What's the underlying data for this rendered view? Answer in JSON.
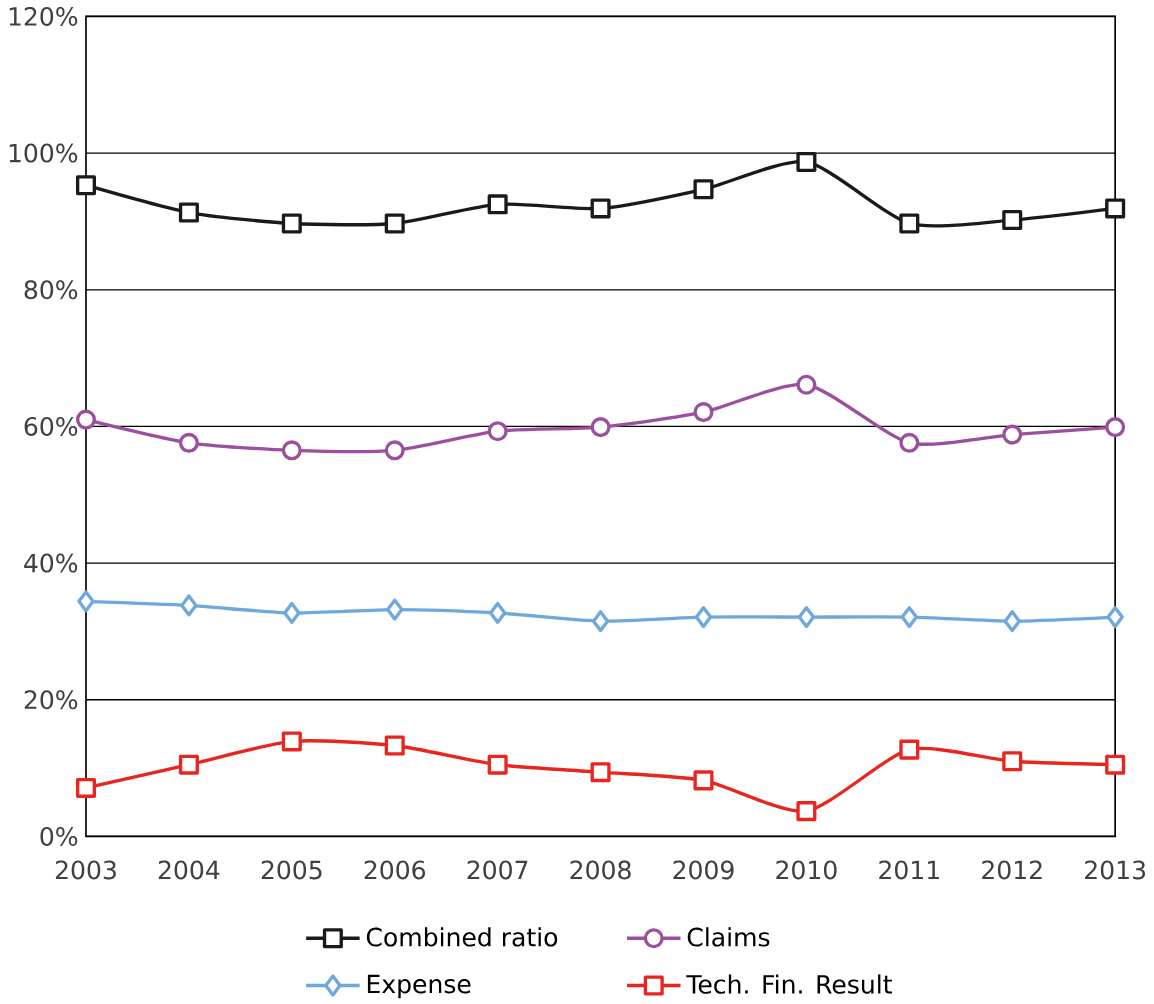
{
  "chart_data": {
    "type": "line",
    "categories": [
      "2003",
      "2004",
      "2005",
      "2006",
      "2007",
      "2008",
      "2009",
      "2010",
      "2011",
      "2012",
      "2013"
    ],
    "series": [
      {
        "name": "Combined ratio",
        "color": "#1a1a1a",
        "marker": "square",
        "values": [
          95.3,
          91.3,
          89.7,
          89.7,
          92.5,
          91.9,
          94.7,
          98.7,
          89.7,
          90.2,
          91.9
        ]
      },
      {
        "name": "Claims",
        "color": "#9b4f9f",
        "marker": "circle",
        "values": [
          61.0,
          57.6,
          56.5,
          56.5,
          59.3,
          59.9,
          62.1,
          66.1,
          57.6,
          58.8,
          59.9
        ]
      },
      {
        "name": "Expense",
        "color": "#6fa8dc",
        "marker": "diamond",
        "values": [
          34.4,
          33.8,
          32.7,
          33.2,
          32.7,
          31.5,
          32.1,
          32.1,
          32.1,
          31.5,
          32.1
        ]
      },
      {
        "name": "Tech. Fin. Result",
        "color": "#e8261f",
        "marker": "square",
        "values": [
          7.1,
          10.5,
          13.9,
          13.3,
          10.5,
          9.4,
          8.2,
          3.7,
          12.7,
          11.0,
          10.5
        ]
      }
    ],
    "ylim": [
      0,
      120
    ],
    "yticks": [
      {
        "value": 0,
        "label": "0%"
      },
      {
        "value": 20,
        "label": "20%"
      },
      {
        "value": 40,
        "label": "40%"
      },
      {
        "value": 60,
        "label": "60%"
      },
      {
        "value": 80,
        "label": "80%"
      },
      {
        "value": 100,
        "label": "100%"
      },
      {
        "value": 120,
        "label": "120%"
      }
    ],
    "grid": "y",
    "legend": "bottom",
    "line_style": "solid"
  }
}
